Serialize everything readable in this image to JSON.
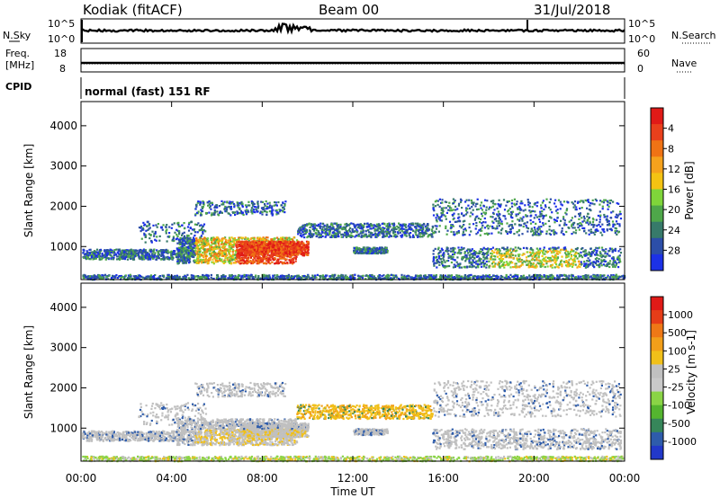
{
  "header": {
    "station": "Kodiak (fitACF)",
    "beam": "Beam 00",
    "date": "31/Jul/2018"
  },
  "panels": {
    "nsky": {
      "left_label": "N.Sky",
      "right_label": "N.Search",
      "left_ticks": [
        "10^5",
        "10^0"
      ],
      "right_ticks": [
        "10^5",
        "10^0"
      ]
    },
    "freq": {
      "left_label": "Freq.",
      "left_unit": "[MHz]",
      "right_label": "Nave",
      "left_ticks": [
        "18",
        "8"
      ],
      "right_ticks": [
        "60",
        "0"
      ]
    },
    "cpid": {
      "left_label": "CPID",
      "mode_text": "normal (fast) 151 RF"
    }
  },
  "chart_data": [
    {
      "type": "heatmap",
      "quantity": "Power",
      "ylabel": "Slant Range [km]",
      "ylim": [
        180,
        4600
      ],
      "y_ticks": [
        "1000",
        "2000",
        "3000",
        "4000"
      ],
      "colorbar_label": "Power [dB]",
      "colorbar_ticks": [
        "4",
        "8",
        "12",
        "16",
        "20",
        "24",
        "28"
      ],
      "colors": [
        "#1c31e6",
        "#2c4ea8",
        "#377a6a",
        "#4ea74a",
        "#7fd53a",
        "#f4c313",
        "#f5a21d",
        "#ef7315",
        "#e9401c",
        "#e01a17"
      ]
    },
    {
      "type": "heatmap",
      "quantity": "Velocity",
      "ylabel": "Slant Range [km]",
      "ylim": [
        180,
        4600
      ],
      "y_ticks": [
        "1000",
        "2000",
        "3000",
        "4000"
      ],
      "colorbar_label": "Velocity [m s-1]",
      "colorbar_ticks": [
        "1000",
        "500",
        "100",
        "25",
        "-25",
        "-100",
        "-500",
        "-1000"
      ],
      "colors": [
        "#2238c9",
        "#2e5cab",
        "#36865a",
        "#54b52f",
        "#8ad446",
        "#c9c9c9",
        "#c0c0c0",
        "#f1c019",
        "#f29f1a",
        "#ef7816",
        "#e63d18",
        "#e01a17"
      ]
    }
  ],
  "x_axis": {
    "label": "Time UT",
    "ticks": [
      "00:00",
      "04:00",
      "08:00",
      "12:00",
      "16:00",
      "20:00",
      "00:00"
    ]
  }
}
